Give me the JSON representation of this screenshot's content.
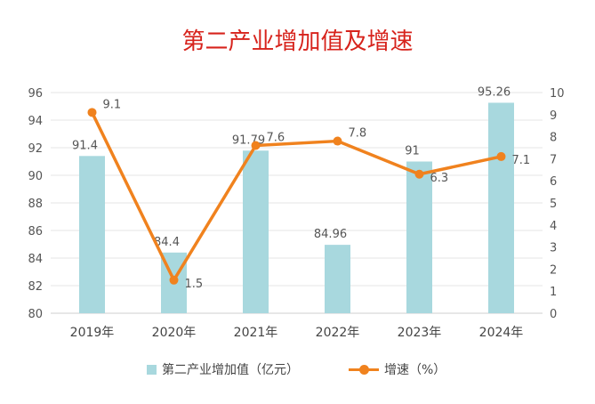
{
  "chart_data": {
    "type": "bar+line",
    "title": "第二产业增加值及增速",
    "categories": [
      "2019年",
      "2020年",
      "2021年",
      "2022年",
      "2023年",
      "2024年"
    ],
    "series": [
      {
        "name": "第二产业增加值（亿元）",
        "type": "bar",
        "axis": "left",
        "color": "#a8d8de",
        "values": [
          91.4,
          84.4,
          91.79,
          84.96,
          91,
          95.26
        ],
        "labels": [
          "91.4",
          "84.4",
          "91.79",
          "84.96",
          "91",
          "95.26"
        ]
      },
      {
        "name": "增速（%）",
        "type": "line",
        "axis": "right",
        "color": "#f0821e",
        "values": [
          9.1,
          1.5,
          7.6,
          7.8,
          6.3,
          7.1
        ],
        "labels": [
          "9.1",
          "1.5",
          "7.6",
          "7.8",
          "6.3",
          "7.1"
        ]
      }
    ],
    "left_axis": {
      "min": 80,
      "max": 96,
      "ticks": [
        "80",
        "82",
        "84",
        "86",
        "88",
        "90",
        "92",
        "94",
        "96"
      ]
    },
    "right_axis": {
      "min": 0,
      "max": 10,
      "ticks": [
        "0",
        "1",
        "2",
        "3",
        "4",
        "5",
        "6",
        "7",
        "8",
        "9",
        "10"
      ]
    },
    "grid": true,
    "legend_position": "bottom"
  }
}
